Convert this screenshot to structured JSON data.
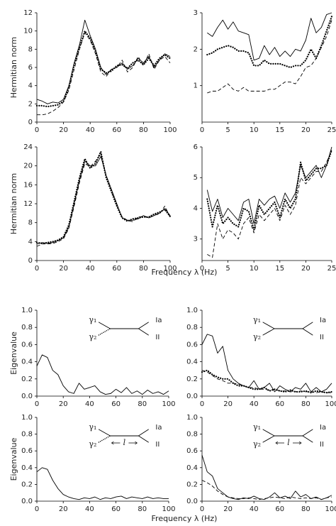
{
  "group_xlabels": [
    "Frequency λ (Hz)",
    "Frequency λ (Hz)"
  ],
  "chart_data": [
    {
      "type": "line",
      "ylabel": "Hermitian norm",
      "x": [
        0,
        4,
        8,
        12,
        16,
        20,
        24,
        28,
        32,
        36,
        40,
        44,
        48,
        52,
        56,
        60,
        64,
        68,
        72,
        76,
        80,
        84,
        88,
        92,
        96,
        100
      ],
      "xlim": [
        0,
        100
      ],
      "xticks": [
        0,
        20,
        40,
        60,
        80,
        100
      ],
      "ylim": [
        0,
        12
      ],
      "yticks": [
        0,
        2,
        4,
        6,
        8,
        10,
        12
      ],
      "series": [
        {
          "style": "solid",
          "color": "#000",
          "values": [
            2.5,
            2.3,
            2.0,
            2.2,
            2.1,
            2.5,
            4.0,
            6.5,
            8.5,
            11.2,
            9.5,
            8.0,
            6.0,
            5.2,
            5.8,
            6.0,
            6.5,
            5.8,
            6.2,
            7.0,
            6.5,
            7.2,
            6.0,
            6.8,
            7.5,
            7.2
          ]
        },
        {
          "style": "dotted",
          "color": "#000",
          "values": [
            1.8,
            1.8,
            1.7,
            1.8,
            1.9,
            2.3,
            3.8,
            6.3,
            8.2,
            10.0,
            9.2,
            7.8,
            5.8,
            5.4,
            5.6,
            6.2,
            6.3,
            5.9,
            6.5,
            6.8,
            6.3,
            7.0,
            6.2,
            7.0,
            7.4,
            7.0
          ]
        },
        {
          "style": "dashed",
          "color": "#000",
          "values": [
            0.8,
            0.8,
            0.9,
            1.2,
            1.6,
            2.2,
            3.5,
            5.8,
            8.0,
            9.8,
            9.0,
            7.5,
            5.5,
            5.0,
            5.8,
            6.0,
            6.8,
            5.5,
            6.0,
            7.2,
            6.2,
            7.5,
            5.8,
            6.8,
            7.2,
            6.5
          ]
        }
      ]
    },
    {
      "type": "line",
      "x": [
        1,
        2,
        3,
        4,
        5,
        6,
        7,
        8,
        9,
        10,
        11,
        12,
        13,
        14,
        15,
        16,
        17,
        18,
        19,
        20,
        21,
        22,
        23,
        24,
        25
      ],
      "xlim": [
        0,
        25
      ],
      "xticks": [
        0,
        5,
        10,
        15,
        20,
        25
      ],
      "ylim": [
        0,
        3
      ],
      "yticks": [
        1,
        2,
        3
      ],
      "series": [
        {
          "style": "solid",
          "color": "#000",
          "values": [
            2.45,
            2.35,
            2.6,
            2.8,
            2.55,
            2.75,
            2.5,
            2.45,
            2.4,
            1.7,
            1.75,
            2.1,
            1.85,
            2.05,
            1.8,
            1.95,
            1.8,
            2.0,
            1.95,
            2.25,
            2.85,
            2.45,
            2.6,
            2.95,
            3.0
          ]
        },
        {
          "style": "dotted",
          "color": "#000",
          "values": [
            1.85,
            1.9,
            2.0,
            2.05,
            2.1,
            2.05,
            1.95,
            1.95,
            1.9,
            1.55,
            1.55,
            1.7,
            1.6,
            1.6,
            1.6,
            1.55,
            1.5,
            1.55,
            1.55,
            1.7,
            2.0,
            1.75,
            2.1,
            2.5,
            2.9
          ]
        },
        {
          "style": "dashed",
          "color": "#000",
          "values": [
            0.8,
            0.85,
            0.85,
            0.95,
            1.05,
            0.9,
            0.85,
            0.95,
            0.85,
            0.85,
            0.85,
            0.85,
            0.9,
            0.9,
            1.0,
            1.1,
            1.1,
            1.05,
            1.25,
            1.5,
            1.55,
            1.75,
            2.05,
            2.35,
            2.8
          ]
        }
      ]
    },
    {
      "type": "line",
      "ylabel": "Hermitian norm",
      "x": [
        0,
        4,
        8,
        12,
        16,
        20,
        24,
        28,
        32,
        36,
        40,
        44,
        48,
        52,
        56,
        60,
        64,
        68,
        72,
        76,
        80,
        84,
        88,
        92,
        96,
        100
      ],
      "xlim": [
        0,
        100
      ],
      "xticks": [
        0,
        20,
        40,
        60,
        80,
        100
      ],
      "ylim": [
        0,
        24
      ],
      "yticks": [
        0,
        4,
        8,
        12,
        16,
        20,
        24
      ],
      "series": [
        {
          "style": "solid",
          "color": "#000",
          "values": [
            3.5,
            3.8,
            3.6,
            3.8,
            4.2,
            4.8,
            7,
            12,
            17,
            21,
            20,
            20,
            22,
            18,
            15,
            12,
            9,
            8.5,
            8.5,
            8.8,
            9.5,
            9,
            9.5,
            10,
            11,
            9.5
          ]
        },
        {
          "style": "dotted",
          "color": "#000",
          "values": [
            3.8,
            3.6,
            3.8,
            4,
            4.3,
            5,
            7.5,
            12.5,
            17.5,
            21.5,
            19.5,
            20.5,
            23,
            17.5,
            14.5,
            11.5,
            9,
            8.3,
            8.8,
            9,
            9.2,
            9.2,
            9.8,
            10.2,
            10.8,
            9.3
          ]
        },
        {
          "style": "dashed",
          "color": "#000",
          "values": [
            3,
            3.5,
            3.5,
            3.6,
            4,
            4.6,
            6.8,
            11.5,
            16.5,
            20.5,
            19.8,
            21,
            22.5,
            18,
            14.8,
            11.8,
            9.2,
            8.5,
            8.2,
            9.2,
            9.3,
            9,
            9.6,
            9.8,
            11.5,
            9.2
          ]
        }
      ]
    },
    {
      "type": "line",
      "x": [
        1,
        2,
        3,
        4,
        5,
        6,
        7,
        8,
        9,
        10,
        11,
        12,
        13,
        14,
        15,
        16,
        17,
        18,
        19,
        20,
        21,
        22,
        23,
        24,
        25
      ],
      "xlim": [
        0,
        25
      ],
      "xticks": [
        0,
        5,
        10,
        15,
        20,
        25
      ],
      "ylim": [
        2.3,
        6
      ],
      "yticks": [
        3,
        4,
        5,
        6
      ],
      "series": [
        {
          "style": "solid",
          "color": "#000",
          "values": [
            4.6,
            3.9,
            4.3,
            3.7,
            4.0,
            3.8,
            3.6,
            4.2,
            4.3,
            3.5,
            4.3,
            4.1,
            4.3,
            4.4,
            4.0,
            4.5,
            4.2,
            4.5,
            5.4,
            5.0,
            5.2,
            5.4,
            5.0,
            5.4,
            6.0
          ]
        },
        {
          "style": "dotted",
          "color": "#000",
          "values": [
            4.3,
            3.4,
            4.1,
            3.5,
            3.7,
            3.5,
            3.4,
            4.0,
            3.9,
            3.3,
            4.1,
            3.8,
            4.0,
            4.2,
            3.7,
            4.3,
            4.0,
            4.3,
            5.5,
            4.9,
            5.1,
            5.3,
            5.3,
            5.4,
            5.9
          ]
        },
        {
          "style": "dashed",
          "color": "#000",
          "values": [
            2.5,
            2.4,
            3.5,
            3.0,
            3.3,
            3.2,
            3.0,
            3.5,
            3.7,
            3.2,
            3.8,
            3.6,
            3.8,
            4.0,
            3.6,
            4.1,
            3.8,
            4.1,
            5.0,
            4.8,
            5.0,
            5.2,
            5.2,
            5.5,
            5.9
          ]
        }
      ]
    },
    {
      "type": "line",
      "ylabel": "Eigenvalue",
      "x": [
        0,
        4,
        8,
        12,
        16,
        20,
        24,
        28,
        32,
        36,
        40,
        44,
        48,
        52,
        56,
        60,
        64,
        68,
        72,
        76,
        80,
        84,
        88,
        92,
        96,
        100
      ],
      "xlim": [
        0,
        100
      ],
      "xticks": [
        0,
        20,
        40,
        60,
        80,
        100
      ],
      "ylim": [
        0,
        1
      ],
      "yticks": [
        {
          "value": 0,
          "label": "0.0"
        },
        0.2,
        0.4,
        0.6,
        0.8,
        {
          "value": 1,
          "label": "1.0"
        }
      ],
      "diagram": {
        "labels": [
          "γ₁",
          "γ₂",
          "Ia",
          "II"
        ],
        "lower_style": "dotted"
      },
      "series": [
        {
          "style": "solid",
          "color": "#000",
          "values": [
            0.35,
            0.48,
            0.45,
            0.3,
            0.25,
            0.12,
            0.05,
            0.03,
            0.15,
            0.08,
            0.1,
            0.12,
            0.05,
            0.02,
            0.03,
            0.08,
            0.04,
            0.1,
            0.03,
            0.06,
            0.02,
            0.07,
            0.03,
            0.05,
            0.02,
            0.06
          ]
        }
      ]
    },
    {
      "type": "line",
      "x": [
        0,
        4,
        8,
        12,
        16,
        20,
        24,
        28,
        32,
        36,
        40,
        44,
        48,
        52,
        56,
        60,
        64,
        68,
        72,
        76,
        80,
        84,
        88,
        92,
        96,
        100
      ],
      "xlim": [
        0,
        100
      ],
      "xticks": [
        0,
        20,
        40,
        60,
        80,
        100
      ],
      "ylim": [
        0,
        1
      ],
      "yticks": [
        {
          "value": 0,
          "label": "0.0"
        },
        0.2,
        0.4,
        0.6,
        0.8,
        {
          "value": 1,
          "label": "1.0"
        }
      ],
      "diagram": {
        "labels": [
          "γ₁",
          "γ₂",
          "Ia",
          "II"
        ],
        "lower_style": "solid"
      },
      "series": [
        {
          "style": "solid",
          "color": "#000",
          "values": [
            0.6,
            0.72,
            0.7,
            0.5,
            0.58,
            0.3,
            0.2,
            0.15,
            0.12,
            0.1,
            0.18,
            0.08,
            0.1,
            0.15,
            0.05,
            0.12,
            0.08,
            0.05,
            0.1,
            0.08,
            0.15,
            0.05,
            0.1,
            0.05,
            0.08,
            0.15
          ]
        },
        {
          "style": "dotted",
          "color": "#000",
          "values": [
            0.28,
            0.3,
            0.25,
            0.22,
            0.2,
            0.2,
            0.15,
            0.12,
            0.12,
            0.1,
            0.08,
            0.08,
            0.1,
            0.06,
            0.08,
            0.06,
            0.05,
            0.07,
            0.05,
            0.05,
            0.06,
            0.04,
            0.06,
            0.05,
            0.04,
            0.05
          ]
        },
        {
          "style": "dashed",
          "color": "#000",
          "values": [
            0.3,
            0.28,
            0.24,
            0.2,
            0.18,
            0.15,
            0.15,
            0.14,
            0.12,
            0.1,
            0.1,
            0.08,
            0.08,
            0.07,
            0.08,
            0.06,
            0.06,
            0.05,
            0.05,
            0.06,
            0.05,
            0.05,
            0.04,
            0.05,
            0.04,
            0.04
          ]
        }
      ]
    },
    {
      "type": "line",
      "ylabel": "Eigenvalue",
      "x": [
        0,
        4,
        8,
        12,
        16,
        20,
        24,
        28,
        32,
        36,
        40,
        44,
        48,
        52,
        56,
        60,
        64,
        68,
        72,
        76,
        80,
        84,
        88,
        92,
        96,
        100
      ],
      "xlim": [
        0,
        100
      ],
      "xticks": [
        0,
        20,
        40,
        60,
        80,
        100
      ],
      "ylim": [
        0,
        1
      ],
      "yticks": [
        {
          "value": 0,
          "label": "0.0"
        },
        0.2,
        0.4,
        0.6,
        0.8,
        {
          "value": 1,
          "label": "1.0"
        }
      ],
      "diagram": {
        "labels": [
          "γ₁",
          "γ₂",
          "Ia",
          "II"
        ],
        "lower_style": "dotted",
        "length_label": "l"
      },
      "series": [
        {
          "style": "solid",
          "color": "#000",
          "values": [
            0.35,
            0.4,
            0.38,
            0.25,
            0.15,
            0.08,
            0.05,
            0.03,
            0.02,
            0.04,
            0.03,
            0.05,
            0.02,
            0.04,
            0.03,
            0.05,
            0.06,
            0.03,
            0.05,
            0.04,
            0.03,
            0.05,
            0.03,
            0.04,
            0.03,
            0.03
          ]
        }
      ]
    },
    {
      "type": "line",
      "x": [
        0,
        4,
        8,
        12,
        16,
        20,
        24,
        28,
        32,
        36,
        40,
        44,
        48,
        52,
        56,
        60,
        64,
        68,
        72,
        76,
        80,
        84,
        88,
        92,
        96,
        100
      ],
      "xlim": [
        0,
        100
      ],
      "xticks": [
        0,
        20,
        40,
        60,
        80,
        100
      ],
      "ylim": [
        0,
        1
      ],
      "yticks": [
        {
          "value": 0,
          "label": "0.0"
        },
        0.2,
        0.4,
        0.6,
        0.8,
        {
          "value": 1,
          "label": "1.0"
        }
      ],
      "diagram": {
        "labels": [
          "γ₁",
          "γ₂",
          "Ia",
          "II"
        ],
        "lower_style": "solid",
        "length_label": "l"
      },
      "series": [
        {
          "style": "solid",
          "color": "#000",
          "values": [
            0.55,
            0.35,
            0.3,
            0.15,
            0.1,
            0.05,
            0.03,
            0.02,
            0.04,
            0.03,
            0.06,
            0.03,
            0.02,
            0.05,
            0.1,
            0.04,
            0.06,
            0.03,
            0.12,
            0.05,
            0.08,
            0.03,
            0.05,
            0.02,
            0.04,
            0.07
          ]
        },
        {
          "style": "dashed",
          "color": "#000",
          "values": [
            0.25,
            0.22,
            0.18,
            0.12,
            0.08,
            0.05,
            0.04,
            0.03,
            0.03,
            0.04,
            0.03,
            0.02,
            0.03,
            0.04,
            0.05,
            0.04,
            0.03,
            0.05,
            0.04,
            0.03,
            0.04,
            0.03,
            0.04,
            0.02,
            0.04,
            0.05
          ]
        }
      ]
    }
  ]
}
